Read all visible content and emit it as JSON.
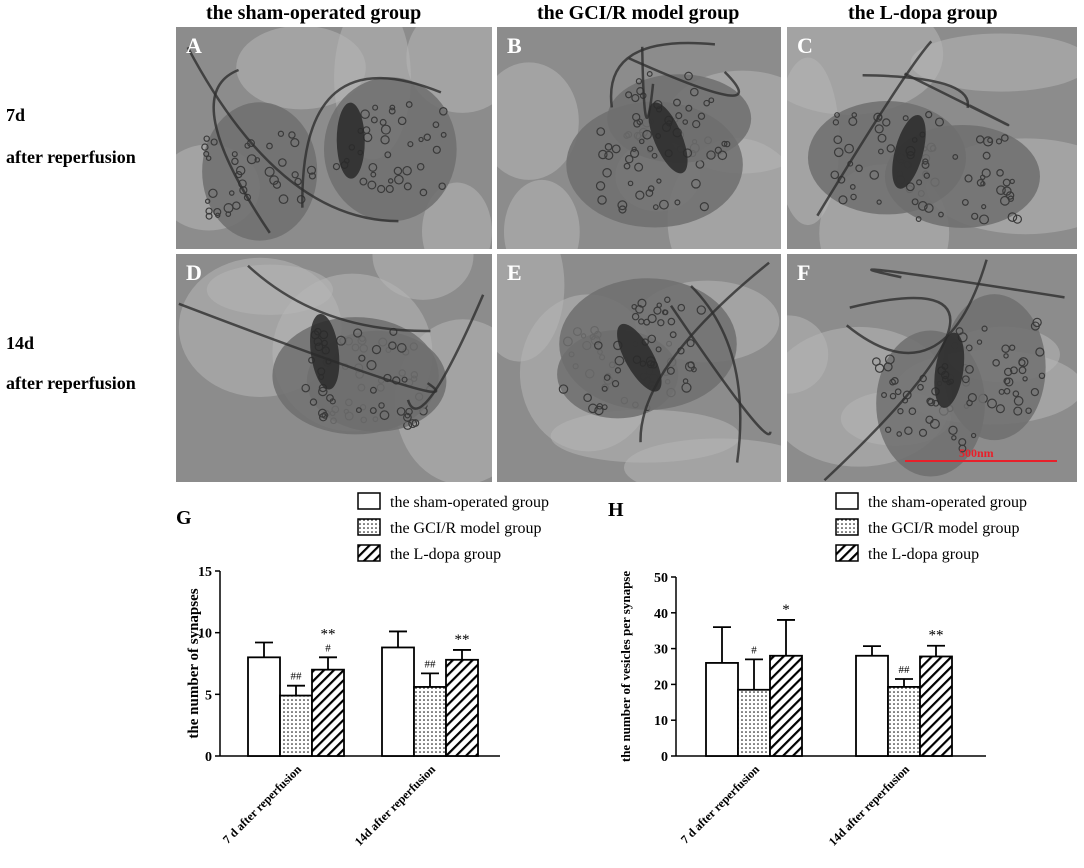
{
  "columns": [
    "the sham-operated group",
    "the GCI/R model group",
    "the L-dopa group"
  ],
  "rows": [
    {
      "line1": "7d",
      "line2": "after reperfusion"
    },
    {
      "line1": "14d",
      "line2": "after reperfusion"
    }
  ],
  "panels": [
    "A",
    "B",
    "C",
    "D",
    "E",
    "F"
  ],
  "scalebar_label": "500nm",
  "colors": {
    "scalebar": "#e8202a",
    "bar_edge": "#000000",
    "micrograph_dark": "#3a3a3a",
    "micrograph_light": "#b4b4b4"
  },
  "chart_data": [
    {
      "type": "bar",
      "panel": "G",
      "ylabel": "the number of synapses",
      "ylim": [
        0,
        15
      ],
      "yticks": [
        0,
        5,
        10,
        15
      ],
      "categories": [
        "7 d after reperfusion",
        "14d after reperfusion"
      ],
      "series": [
        {
          "name": "the sham-operated group",
          "fill": "open",
          "values": [
            8.0,
            8.8
          ],
          "errors": [
            1.2,
            1.3
          ],
          "marks": [
            "",
            ""
          ]
        },
        {
          "name": "the GCI/R model group",
          "fill": "dotted",
          "values": [
            4.9,
            5.6
          ],
          "errors": [
            0.8,
            1.1
          ],
          "marks": [
            "##",
            "##"
          ]
        },
        {
          "name": "the L-dopa group",
          "fill": "hatched",
          "values": [
            7.0,
            7.8
          ],
          "errors": [
            1.0,
            0.8
          ],
          "marks": [
            "**\n#",
            "**"
          ]
        }
      ],
      "legend": "top"
    },
    {
      "type": "bar",
      "panel": "H",
      "ylabel": "the number of vesicles per synapse",
      "ylim": [
        0,
        50
      ],
      "yticks": [
        0,
        10,
        20,
        30,
        40,
        50
      ],
      "categories": [
        "7 d after reperfusion",
        "14d after reperfusion"
      ],
      "series": [
        {
          "name": "the sham-operated group",
          "fill": "open",
          "values": [
            26.0,
            28.0
          ],
          "errors": [
            10.0,
            2.7
          ],
          "marks": [
            "",
            ""
          ]
        },
        {
          "name": "the GCI/R model group",
          "fill": "dotted",
          "values": [
            18.5,
            19.3
          ],
          "errors": [
            8.5,
            2.2
          ],
          "marks": [
            "#",
            "##"
          ]
        },
        {
          "name": "the L-dopa group",
          "fill": "hatched",
          "values": [
            28.0,
            27.8
          ],
          "errors": [
            10.0,
            3.0
          ],
          "marks": [
            "*",
            "**"
          ]
        }
      ],
      "legend": "top"
    }
  ]
}
